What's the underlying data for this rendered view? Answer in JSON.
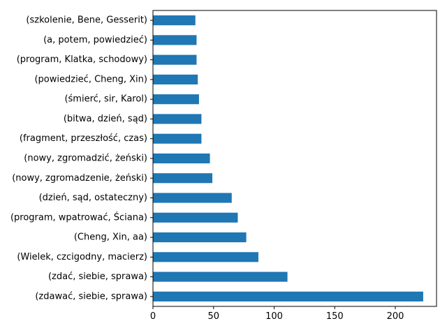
{
  "chart_data": {
    "type": "bar",
    "orientation": "horizontal",
    "categories": [
      "(zdawać, siebie, sprawa)",
      "(zdać, siebie, sprawa)",
      "(Wielek, czcigodny, macierz)",
      "(Cheng, Xin, aa)",
      "(program, wpatrować, Ściana)",
      "(dzień, sąd, ostateczny)",
      "(nowy, zgromadzenie, żeński)",
      "(nowy, zgromadzić, żeński)",
      "(fragment, przeszłość, czas)",
      "(bitwa, dzień, sąd)",
      "(śmierć, sir, Karol)",
      "(powiedzieć, Cheng, Xin)",
      "(program, Klatka, schodowy)",
      "(a, potem, powiedzieć)",
      "(szkolenie, Bene, Gesserit)"
    ],
    "values": [
      223,
      111,
      87,
      77,
      70,
      65,
      49,
      47,
      40,
      40,
      38,
      37,
      36,
      36,
      35
    ],
    "xticks": [
      0,
      50,
      100,
      150,
      200
    ],
    "xlim": [
      0,
      234
    ],
    "title": "",
    "xlabel": "",
    "ylabel": "",
    "grid": false,
    "bar_color": "#1f77b4"
  }
}
